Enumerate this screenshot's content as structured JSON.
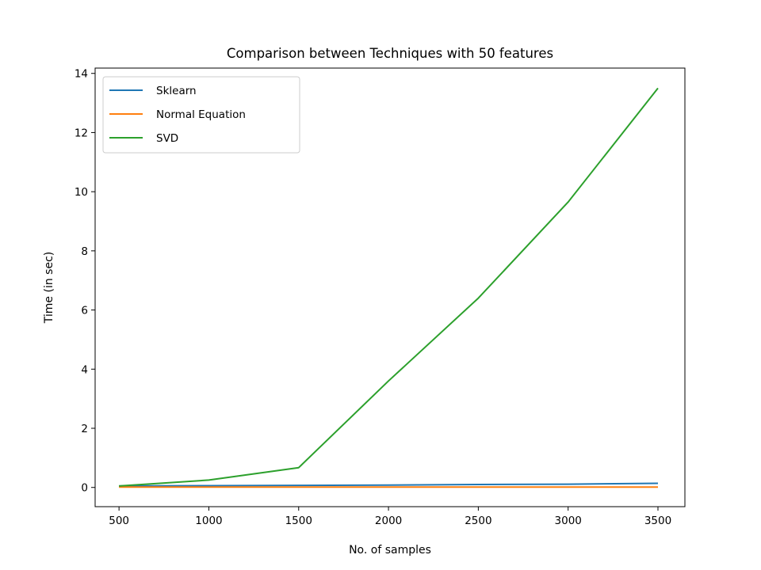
{
  "chart_data": {
    "type": "line",
    "title": "Comparison between Techniques with 50 features",
    "xlabel": "No. of samples",
    "ylabel": "Time (in sec)",
    "x": [
      500,
      1000,
      1500,
      2000,
      2500,
      3000,
      3500
    ],
    "xlim": [
      367,
      3650
    ],
    "ylim": [
      -0.65,
      14.18
    ],
    "xticks": [
      500,
      1000,
      1500,
      2000,
      2500,
      3000,
      3500
    ],
    "yticks": [
      0,
      2,
      4,
      6,
      8,
      10,
      12,
      14
    ],
    "grid": false,
    "legend_position": "top-left",
    "series": [
      {
        "name": "Sklearn",
        "color": "#1f77b4",
        "values": [
          0.05,
          0.06,
          0.07,
          0.08,
          0.1,
          0.11,
          0.14
        ]
      },
      {
        "name": "Normal Equation",
        "color": "#ff7f0e",
        "values": [
          0.01,
          0.01,
          0.01,
          0.01,
          0.01,
          0.01,
          0.01
        ]
      },
      {
        "name": "SVD",
        "color": "#2ca02c",
        "values": [
          0.05,
          0.25,
          0.67,
          3.6,
          6.4,
          9.65,
          13.5
        ]
      }
    ]
  }
}
